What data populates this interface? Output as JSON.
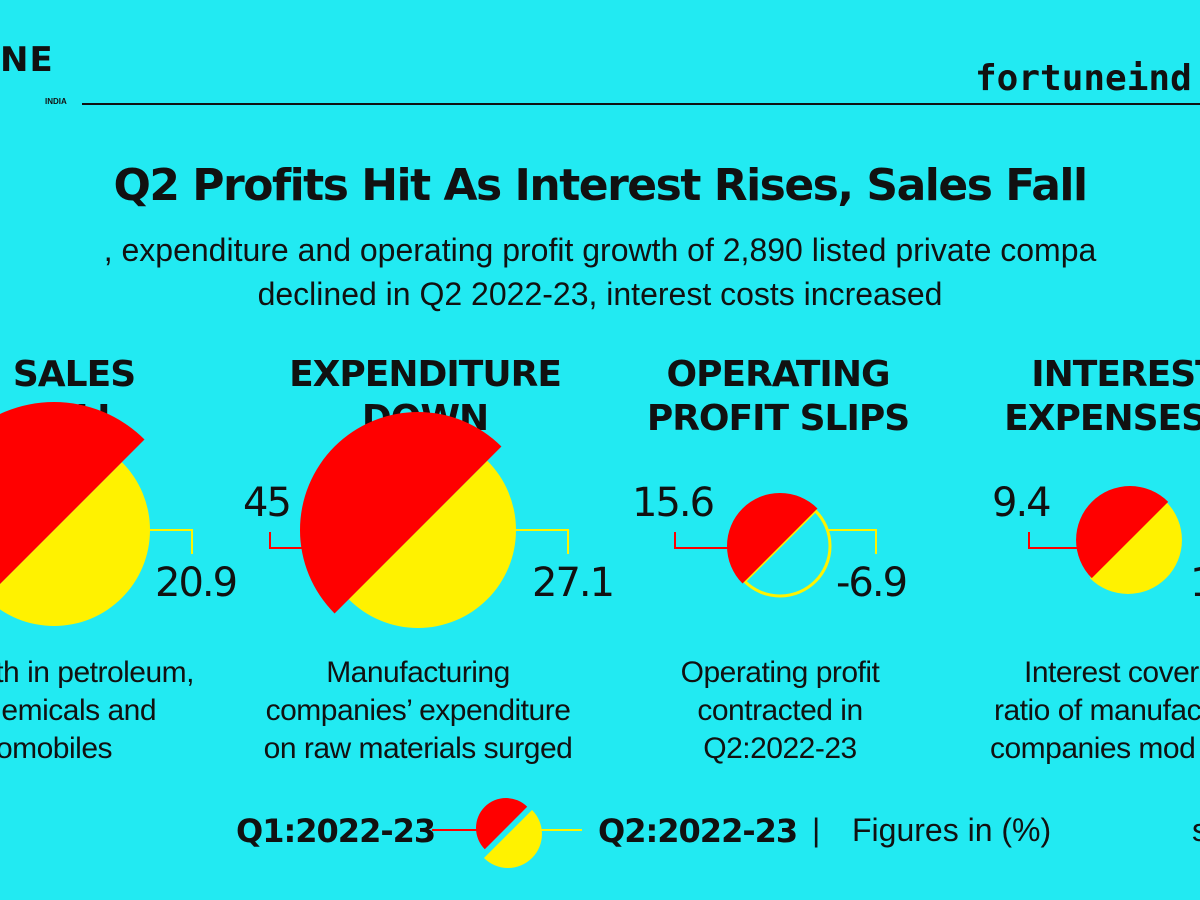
{
  "header": {
    "logo": "NE",
    "logo_sub": "INDIA",
    "site": "fortuneind"
  },
  "colors": {
    "background": "#22EAF2",
    "q1": "#FF0000",
    "q2": "#FFF200",
    "line": "#111111"
  },
  "chart_data": {
    "type": "pie",
    "title": "Q2 Profits Hit As Interest Rises, Sales Fall",
    "subtitle": [
      ", expenditure and operating profit growth of 2,890 listed private compa",
      "declined in Q2 2022-23, interest costs increased"
    ],
    "series_names": [
      "Q1:2022-23",
      "Q2:2022-23"
    ],
    "units": "Figures in (%)",
    "panels": [
      {
        "heading": [
          "SALES",
          "FALL"
        ],
        "q1": null,
        "q2": 20.9,
        "q1_label": "",
        "q2_label": "20.9",
        "description": [
          "th in petroleum,",
          "emicals and",
          "utomobiles"
        ]
      },
      {
        "heading": [
          "EXPENDITURE",
          "DOWN"
        ],
        "q1": 45,
        "q2": 27.1,
        "q1_label": "45",
        "q2_label": "27.1",
        "description": [
          "Manufacturing",
          "companies’ expenditure",
          "on raw materials surged"
        ]
      },
      {
        "heading": [
          "OPERATING",
          "PROFIT SLIPS"
        ],
        "q1": 15.6,
        "q2": -6.9,
        "q1_label": "15.6",
        "q2_label": "-6.9",
        "description": [
          "Operating profit",
          "contracted in",
          "Q2:2022-23"
        ]
      },
      {
        "heading": [
          "INTEREST",
          "EXPENSES U"
        ],
        "q1": 9.4,
        "q2": null,
        "q1_label": "9.4",
        "q2_label": "1",
        "description": [
          "Interest cover",
          "ratio of manufac",
          "companies mod"
        ]
      }
    ]
  },
  "legend": {
    "q1": "Q1:2022-23",
    "q2": "Q2:2022-23",
    "separator": "|",
    "units": "Figures in (%)",
    "trailing": "s"
  }
}
